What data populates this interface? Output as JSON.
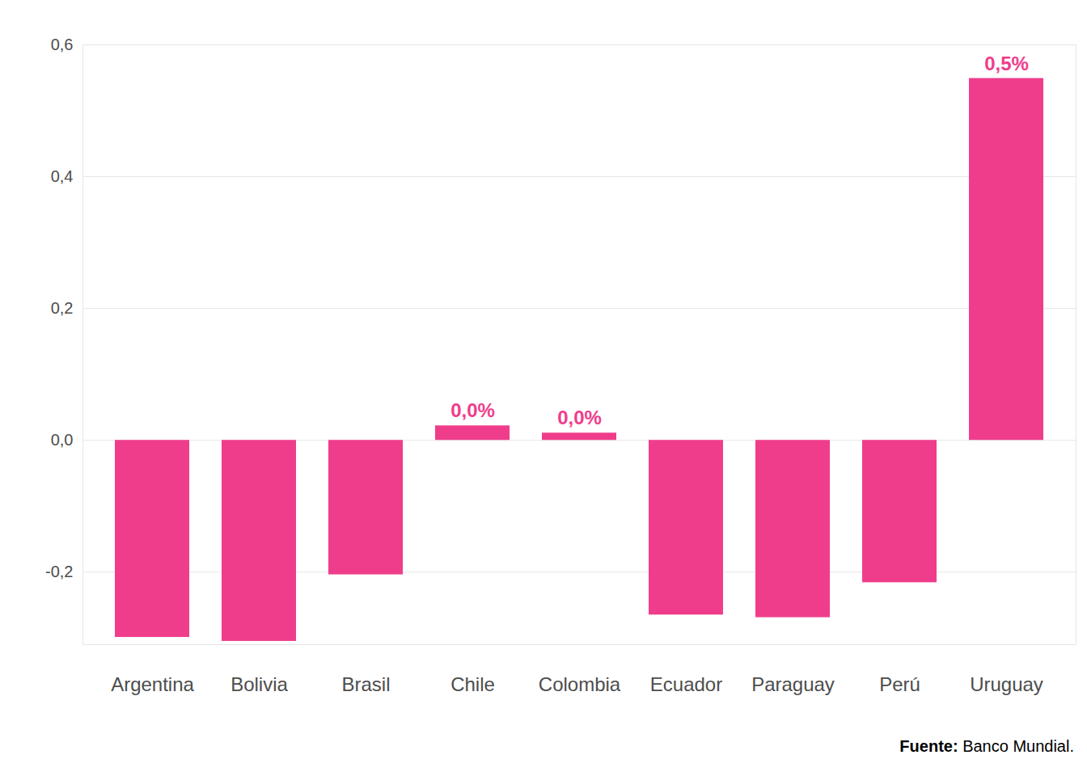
{
  "chart_data": {
    "type": "bar",
    "categories": [
      "Argentina",
      "Bolivia",
      "Brasil",
      "Chile",
      "Colombia",
      "Ecuador",
      "Paraguay",
      "Perú",
      "Uruguay"
    ],
    "values": [
      -0.299,
      -0.305,
      -0.204,
      0.022,
      0.011,
      -0.265,
      -0.269,
      -0.216,
      0.549
    ],
    "value_labels": [
      null,
      null,
      null,
      "0,0%",
      "0,0%",
      null,
      null,
      null,
      "0,5%"
    ],
    "data_labels": true,
    "color": "#ef3d8c",
    "ylim": [
      -0.31,
      0.6
    ],
    "yticks": [
      {
        "value": -0.2,
        "label": "-0,2"
      },
      {
        "value": 0,
        "label": "0,0"
      },
      {
        "value": 0.2,
        "label": "0,2"
      },
      {
        "value": 0.4,
        "label": "0,4"
      },
      {
        "value": 0.6,
        "label": "0,6"
      }
    ],
    "grid": true,
    "caption_label": "Fuente:",
    "caption": "Banco Mundial."
  }
}
